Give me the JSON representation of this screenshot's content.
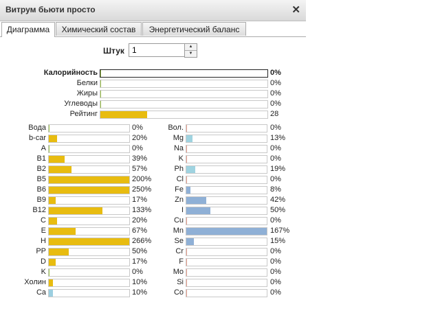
{
  "window": {
    "title": "Витрум бьюти просто"
  },
  "tabs": [
    {
      "label": "Диаграмма",
      "active": true
    },
    {
      "label": "Химический состав",
      "active": false
    },
    {
      "label": "Энергетический баланс",
      "active": false
    }
  ],
  "quantity": {
    "label": "Штук",
    "value": "1"
  },
  "summary": [
    {
      "label": "Калорийность",
      "pct": "0%",
      "fill": 0,
      "bold": true
    },
    {
      "label": "Белки",
      "pct": "0%",
      "fill": 0
    },
    {
      "label": "Жиры",
      "pct": "0%",
      "fill": 0
    },
    {
      "label": "Углеводы",
      "pct": "0%",
      "fill": 0
    },
    {
      "label": "Рейтинг",
      "pct": "28",
      "fill": 28
    }
  ],
  "vitamins": [
    {
      "label": "Вода",
      "pct": "0%",
      "fill": 0
    },
    {
      "label": "b-car",
      "pct": "20%",
      "fill": 20
    },
    {
      "label": "A",
      "pct": "0%",
      "fill": 0
    },
    {
      "label": "B1",
      "pct": "39%",
      "fill": 39
    },
    {
      "label": "B2",
      "pct": "57%",
      "fill": 57
    },
    {
      "label": "B5",
      "pct": "200%",
      "fill": 200
    },
    {
      "label": "B6",
      "pct": "250%",
      "fill": 250
    },
    {
      "label": "B9",
      "pct": "17%",
      "fill": 17
    },
    {
      "label": "B12",
      "pct": "133%",
      "fill": 133
    },
    {
      "label": "C",
      "pct": "20%",
      "fill": 20
    },
    {
      "label": "E",
      "pct": "67%",
      "fill": 67
    },
    {
      "label": "H",
      "pct": "266%",
      "fill": 266
    },
    {
      "label": "PP",
      "pct": "50%",
      "fill": 50
    },
    {
      "label": "D",
      "pct": "17%",
      "fill": 17
    },
    {
      "label": "K",
      "pct": "0%",
      "fill": 0
    },
    {
      "label": "Холин",
      "pct": "10%",
      "fill": 10
    },
    {
      "label": "Ca",
      "pct": "10%",
      "fill": 10
    }
  ],
  "minerals": [
    {
      "label": "Вол.",
      "pct": "0%",
      "fill": 0
    },
    {
      "label": "Mg",
      "pct": "13%",
      "fill": 13
    },
    {
      "label": "Na",
      "pct": "0%",
      "fill": 0
    },
    {
      "label": "K",
      "pct": "0%",
      "fill": 0
    },
    {
      "label": "Ph",
      "pct": "19%",
      "fill": 19
    },
    {
      "label": "Cl",
      "pct": "0%",
      "fill": 0
    },
    {
      "label": "Fe",
      "pct": "8%",
      "fill": 8
    },
    {
      "label": "Zn",
      "pct": "42%",
      "fill": 42
    },
    {
      "label": "I",
      "pct": "50%",
      "fill": 50
    },
    {
      "label": "Cu",
      "pct": "0%",
      "fill": 0
    },
    {
      "label": "Mn",
      "pct": "167%",
      "fill": 167
    },
    {
      "label": "Se",
      "pct": "15%",
      "fill": 15
    },
    {
      "label": "Cr",
      "pct": "0%",
      "fill": 0
    },
    {
      "label": "F",
      "pct": "0%",
      "fill": 0
    },
    {
      "label": "Mo",
      "pct": "0%",
      "fill": 0
    },
    {
      "label": "Si",
      "pct": "0%",
      "fill": 0
    },
    {
      "label": "Co",
      "pct": "0%",
      "fill": 0
    }
  ],
  "colors": {
    "vitamin_bar": "#e8bc10",
    "mineral_bar": "#8fb0d6",
    "ca_bar": "#9ccfe0",
    "mg_ph_bar": "#9fd3e0",
    "zero_marker_vitamin": "#9bc24a",
    "zero_marker_mineral": "#e8a090"
  }
}
